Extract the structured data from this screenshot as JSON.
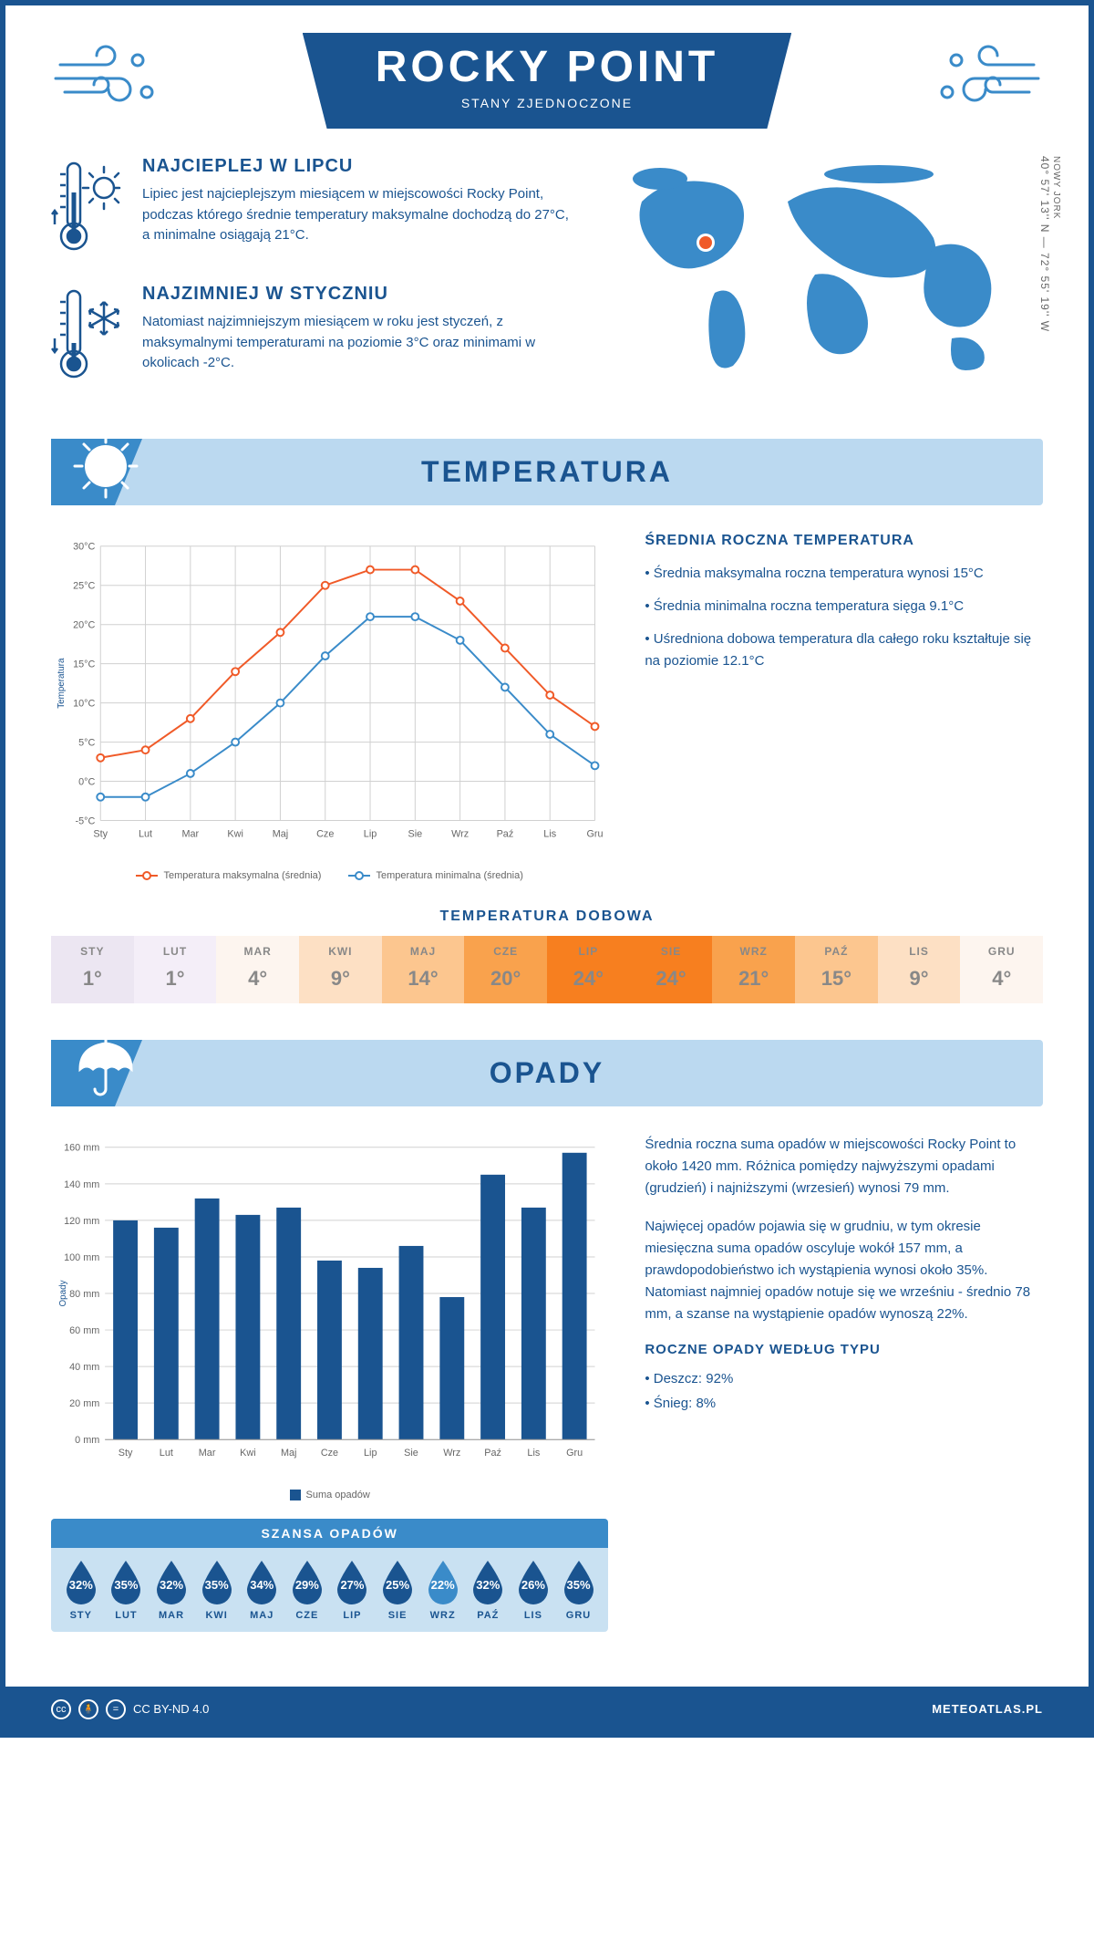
{
  "header": {
    "title": "ROCKY POINT",
    "subtitle": "STANY ZJEDNOCZONE"
  },
  "intro": {
    "hot": {
      "title": "NAJCIEPLEJ W LIPCU",
      "text": "Lipiec jest najcieplejszym miesiącem w miejscowości Rocky Point, podczas którego średnie temperatury maksymalne dochodzą do 27°C, a minimalne osiągają 21°C."
    },
    "cold": {
      "title": "NAJZIMNIEJ W STYCZNIU",
      "text": "Natomiast najzimniejszym miesiącem w roku jest styczeń, z maksymalnymi temperaturami na poziomie 3°C oraz minimami w okolicach -2°C."
    },
    "coords": "40° 57' 13'' N — 72° 55' 19'' W",
    "region": "NOWY JORK"
  },
  "temperature": {
    "section_title": "TEMPERATURA",
    "chart": {
      "type": "line",
      "months": [
        "Sty",
        "Lut",
        "Mar",
        "Kwi",
        "Maj",
        "Cze",
        "Lip",
        "Sie",
        "Wrz",
        "Paź",
        "Lis",
        "Gru"
      ],
      "y_ticks": [
        -5,
        0,
        5,
        10,
        15,
        20,
        25,
        30
      ],
      "y_tick_labels": [
        "-5°C",
        "0°C",
        "5°C",
        "10°C",
        "15°C",
        "20°C",
        "25°C",
        "30°C"
      ],
      "ylim": [
        -5,
        30
      ],
      "series": {
        "max": {
          "label": "Temperatura maksymalna (średnia)",
          "color": "#f05a28",
          "values": [
            3,
            4,
            8,
            14,
            19,
            25,
            27,
            27,
            23,
            17,
            11,
            7
          ]
        },
        "min": {
          "label": "Temperatura minimalna (średnia)",
          "color": "#3a8bc9",
          "values": [
            -2,
            -2,
            1,
            5,
            10,
            16,
            21,
            21,
            18,
            12,
            6,
            2
          ]
        }
      },
      "y_axis_label": "Temperatura",
      "grid_color": "#d0d0d0",
      "background": "#ffffff",
      "marker": "circle",
      "line_width": 2
    },
    "side": {
      "title": "ŚREDNIA ROCZNA TEMPERATURA",
      "bullets": [
        "• Średnia maksymalna roczna temperatura wynosi 15°C",
        "• Średnia minimalna roczna temperatura sięga 9.1°C",
        "• Uśredniona dobowa temperatura dla całego roku kształtuje się na poziomie 12.1°C"
      ]
    },
    "daily": {
      "title": "TEMPERATURA DOBOWA",
      "months": [
        "STY",
        "LUT",
        "MAR",
        "KWI",
        "MAJ",
        "CZE",
        "LIP",
        "SIE",
        "WRZ",
        "PAŹ",
        "LIS",
        "GRU"
      ],
      "values": [
        "1°",
        "1°",
        "4°",
        "9°",
        "14°",
        "20°",
        "24°",
        "24°",
        "21°",
        "15°",
        "9°",
        "4°"
      ],
      "colors": [
        "#ece6f2",
        "#f4eef8",
        "#fdf5ef",
        "#fde0c4",
        "#fcc68f",
        "#f9a24d",
        "#f77f1f",
        "#f77f1f",
        "#f9a24d",
        "#fcc68f",
        "#fde0c4",
        "#fdf5ef"
      ]
    }
  },
  "precipitation": {
    "section_title": "OPADY",
    "chart": {
      "type": "bar",
      "months": [
        "Sty",
        "Lut",
        "Mar",
        "Kwi",
        "Maj",
        "Cze",
        "Lip",
        "Sie",
        "Wrz",
        "Paź",
        "Lis",
        "Gru"
      ],
      "y_ticks": [
        0,
        20,
        40,
        60,
        80,
        100,
        120,
        140,
        160
      ],
      "y_tick_labels": [
        "0 mm",
        "20 mm",
        "40 mm",
        "60 mm",
        "80 mm",
        "100 mm",
        "120 mm",
        "140 mm",
        "160 mm"
      ],
      "ylim": [
        0,
        160
      ],
      "values": [
        120,
        116,
        132,
        123,
        127,
        98,
        94,
        106,
        78,
        145,
        127,
        157
      ],
      "bar_color": "#1a5490",
      "legend_label": "Suma opadów",
      "y_axis_label": "Opady",
      "grid_color": "#d0d0d0",
      "bar_width": 0.6
    },
    "side": {
      "p1": "Średnia roczna suma opadów w miejscowości Rocky Point to około 1420 mm. Różnica pomiędzy najwyższymi opadami (grudzień) i najniższymi (wrzesień) wynosi 79 mm.",
      "p2": "Najwięcej opadów pojawia się w grudniu, w tym okresie miesięczna suma opadów oscyluje wokół 157 mm, a prawdopodobieństwo ich wystąpienia wynosi około 35%. Natomiast najmniej opadów notuje się we wrześniu - średnio 78 mm, a szanse na wystąpienie opadów wynoszą 22%.",
      "type_title": "ROCZNE OPADY WEDŁUG TYPU",
      "bullets": [
        "• Deszcz: 92%",
        "• Śnieg: 8%"
      ]
    },
    "chance": {
      "title": "SZANSA OPADÓW",
      "months": [
        "STY",
        "LUT",
        "MAR",
        "KWI",
        "MAJ",
        "CZE",
        "LIP",
        "SIE",
        "WRZ",
        "PAŹ",
        "LIS",
        "GRU"
      ],
      "values": [
        "32%",
        "35%",
        "32%",
        "35%",
        "34%",
        "29%",
        "27%",
        "25%",
        "22%",
        "32%",
        "26%",
        "35%"
      ],
      "drop_dark": "#1a5490",
      "drop_light": "#3a8bc9",
      "light_index": 8
    }
  },
  "footer": {
    "license": "CC BY-ND 4.0",
    "site": "METEOATLAS.PL"
  },
  "colors": {
    "primary": "#1a5490",
    "secondary": "#3a8bc9",
    "light_blue": "#bbd9f0",
    "orange": "#f05a28"
  }
}
